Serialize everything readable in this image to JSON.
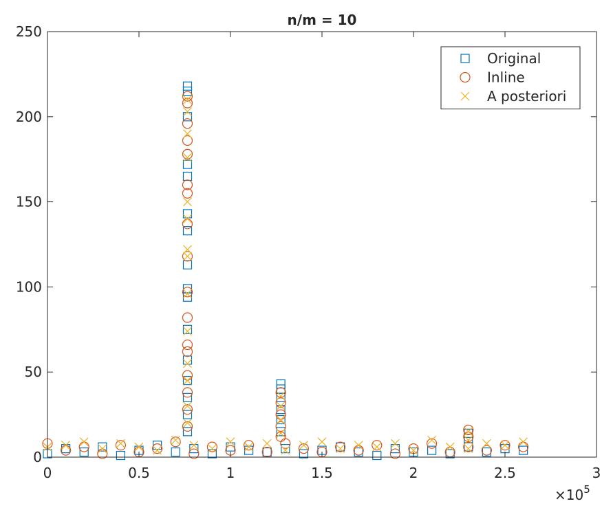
{
  "chart_data": {
    "type": "scatter",
    "title": "n/m = 10",
    "xlim": [
      0,
      300000
    ],
    "ylim": [
      0,
      250
    ],
    "xticks": [
      {
        "value": 0,
        "label": "0"
      },
      {
        "value": 50000,
        "label": "0.5"
      },
      {
        "value": 100000,
        "label": "1"
      },
      {
        "value": 150000,
        "label": "1.5"
      },
      {
        "value": 200000,
        "label": "2"
      },
      {
        "value": 250000,
        "label": "2.5"
      },
      {
        "value": 300000,
        "label": "3"
      }
    ],
    "yticks": [
      0,
      50,
      100,
      150,
      200,
      250
    ],
    "x_multiplier": {
      "base": "×10",
      "exponent": "5"
    },
    "legend": "top-right",
    "grid": false,
    "series": [
      {
        "name": "Original",
        "color": "#0072bd",
        "marker": "square",
        "x": [
          0,
          10000,
          20000,
          30000,
          40000,
          50000,
          60000,
          70000,
          80000,
          90000,
          100000,
          110000,
          120000,
          130000,
          140000,
          150000,
          160000,
          170000,
          180000,
          190000,
          200000,
          210000,
          220000,
          230000,
          240000,
          250000,
          260000,
          76500,
          76500,
          76500,
          76500,
          76500,
          76500,
          76500,
          76500,
          76500,
          76500,
          76500,
          76500,
          76500,
          76500,
          76500,
          76500,
          127500,
          127500,
          127500,
          127500,
          127500,
          127500,
          230000,
          230000
        ],
        "values": [
          2,
          5,
          3,
          6,
          1,
          4,
          7,
          3,
          5,
          2,
          6,
          4,
          3,
          5,
          2,
          4,
          6,
          3,
          1,
          5,
          3,
          4,
          2,
          6,
          3,
          5,
          4,
          218,
          215,
          200,
          172,
          165,
          143,
          133,
          113,
          99,
          94,
          75,
          57,
          45,
          35,
          25,
          15,
          43,
          40,
          35,
          28,
          22,
          15,
          14,
          11
        ]
      },
      {
        "name": "Inline",
        "color": "#d95319",
        "marker": "circle",
        "x": [
          0,
          10000,
          20000,
          30000,
          40000,
          50000,
          60000,
          70000,
          80000,
          90000,
          100000,
          110000,
          120000,
          130000,
          140000,
          150000,
          160000,
          170000,
          180000,
          190000,
          200000,
          210000,
          220000,
          230000,
          240000,
          250000,
          260000,
          76500,
          76500,
          76500,
          76500,
          76500,
          76500,
          76500,
          76500,
          76500,
          76500,
          76500,
          76500,
          76500,
          76500,
          76500,
          76500,
          76500,
          127500,
          127500,
          127500,
          127500,
          127500,
          230000,
          230000
        ],
        "values": [
          8,
          4,
          6,
          2,
          7,
          3,
          5,
          9,
          2,
          6,
          4,
          7,
          3,
          8,
          5,
          3,
          6,
          4,
          7,
          2,
          5,
          8,
          3,
          6,
          4,
          7,
          6,
          212,
          208,
          196,
          186,
          178,
          160,
          155,
          137,
          118,
          97,
          82,
          66,
          62,
          48,
          38,
          28,
          18,
          38,
          32,
          25,
          18,
          12,
          16,
          12
        ]
      },
      {
        "name": "A posteriori",
        "color": "#edb120",
        "marker": "x",
        "x": [
          0,
          10000,
          20000,
          30000,
          40000,
          50000,
          60000,
          70000,
          80000,
          90000,
          100000,
          110000,
          120000,
          130000,
          140000,
          150000,
          160000,
          170000,
          180000,
          190000,
          200000,
          210000,
          220000,
          230000,
          240000,
          250000,
          260000,
          76500,
          76500,
          76500,
          76500,
          76500,
          76500,
          76500,
          76500,
          76500,
          76500,
          76500,
          76500,
          76500,
          76500,
          127500,
          127500,
          127500,
          127500,
          230000,
          230000
        ],
        "values": [
          6,
          7,
          9,
          5,
          8,
          6,
          4,
          10,
          7,
          5,
          9,
          6,
          8,
          4,
          7,
          9,
          5,
          7,
          6,
          8,
          4,
          10,
          6,
          5,
          8,
          7,
          9,
          210,
          203,
          190,
          176,
          150,
          140,
          122,
          118,
          96,
          74,
          55,
          45,
          30,
          20,
          36,
          30,
          22,
          14,
          15,
          10
        ]
      }
    ]
  }
}
